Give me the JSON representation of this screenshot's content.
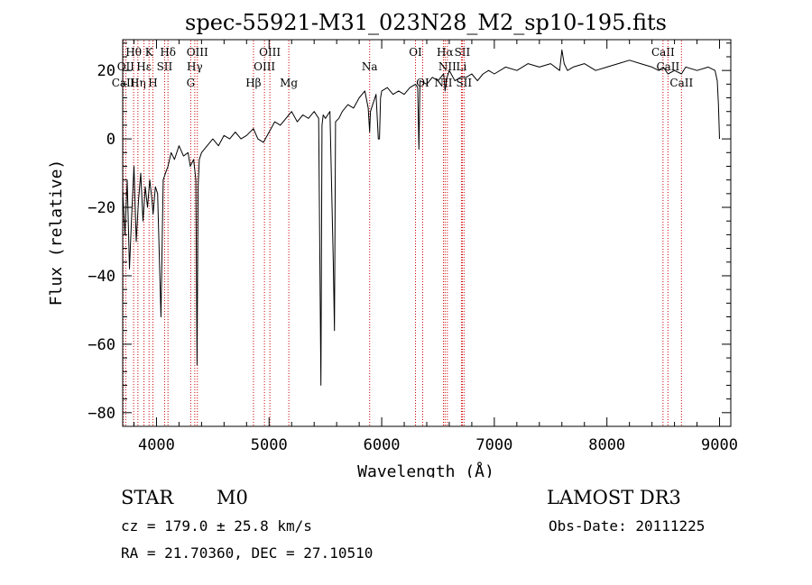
{
  "chart_data": {
    "type": "line",
    "title": "spec-55921-M31_023N28_M2_sp10-195.fits",
    "xlabel": "Wavelength (Å)",
    "ylabel": "Flux (relative)",
    "xlim": [
      3700,
      9100
    ],
    "ylim": [
      -84,
      29
    ],
    "xticks": [
      4000,
      5000,
      6000,
      7000,
      8000,
      9000
    ],
    "xtick_labels": [
      "4000",
      "5000",
      "6000",
      "7000",
      "8000",
      "9000"
    ],
    "yticks": [
      -80,
      -60,
      -40,
      -20,
      0,
      20
    ],
    "ytick_labels": [
      "−80",
      "−60",
      "−40",
      "−20",
      "0",
      "20"
    ],
    "series": [
      {
        "name": "flux",
        "x": [
          3700,
          3720,
          3740,
          3760,
          3780,
          3800,
          3820,
          3840,
          3860,
          3880,
          3900,
          3920,
          3940,
          3960,
          3970,
          3990,
          4010,
          4040,
          4060,
          4080,
          4102,
          4130,
          4160,
          4200,
          4240,
          4280,
          4300,
          4330,
          4350,
          4360,
          4370,
          4380,
          4400,
          4450,
          4500,
          4550,
          4600,
          4650,
          4700,
          4750,
          4800,
          4861,
          4900,
          4950,
          5000,
          5050,
          5100,
          5150,
          5200,
          5250,
          5300,
          5350,
          5400,
          5440,
          5460,
          5470,
          5480,
          5500,
          5540,
          5570,
          5580,
          5590,
          5620,
          5650,
          5700,
          5750,
          5800,
          5850,
          5880,
          5893,
          5900,
          5950,
          5970,
          5980,
          5990,
          6000,
          6050,
          6100,
          6150,
          6200,
          6250,
          6300,
          6320,
          6330,
          6340,
          6400,
          6450,
          6500,
          6550,
          6563,
          6580,
          6600,
          6650,
          6700,
          6750,
          6800,
          6850,
          6900,
          6950,
          7000,
          7100,
          7200,
          7300,
          7400,
          7500,
          7580,
          7600,
          7620,
          7650,
          7700,
          7800,
          7900,
          8000,
          8100,
          8200,
          8300,
          8400,
          8460,
          8500,
          8542,
          8600,
          8662,
          8700,
          8800,
          8900,
          8960,
          8980,
          8990,
          9000
        ],
        "y": [
          -15,
          -28,
          -12,
          -38,
          -22,
          -8,
          -30,
          -18,
          -10,
          -24,
          -14,
          -20,
          -12,
          -18,
          -22,
          -14,
          -16,
          -52,
          -12,
          -10,
          -8,
          -4,
          -6,
          -2,
          -5,
          -4,
          -8,
          -6,
          -12,
          -66,
          -14,
          -6,
          -4,
          -2,
          0,
          -2,
          1,
          0,
          2,
          0,
          1,
          3,
          0,
          -1,
          2,
          5,
          4,
          6,
          8,
          5,
          7,
          6,
          8,
          6,
          -72,
          4,
          7,
          6,
          8,
          -36,
          -56,
          5,
          6,
          8,
          10,
          9,
          12,
          14,
          9,
          2,
          8,
          13,
          0,
          0,
          12,
          14,
          15,
          13,
          14,
          13,
          15,
          16,
          15,
          -3,
          17,
          16,
          18,
          17,
          19,
          14,
          18,
          20,
          17,
          18,
          18,
          19,
          17,
          19,
          20,
          19,
          21,
          20,
          22,
          21,
          22,
          20,
          26,
          22,
          20,
          21,
          22,
          20,
          21,
          22,
          23,
          22,
          21,
          20,
          21,
          19,
          20,
          19,
          21,
          20,
          21,
          20,
          17,
          10,
          0
        ]
      }
    ],
    "line_markers": [
      {
        "label": "Hθ",
        "x": 3797,
        "row": 1
      },
      {
        "label": "OII",
        "x": 3727,
        "row": 2
      },
      {
        "label": "CaII",
        "x": 3705,
        "row": 3
      },
      {
        "label": "Hη",
        "x": 3835,
        "row": 3
      },
      {
        "label": "Hε",
        "x": 3889,
        "row": 2
      },
      {
        "label": "K",
        "x": 3934,
        "row": 1
      },
      {
        "label": "H",
        "x": 3968,
        "row": 3
      },
      {
        "label": "SII",
        "x": 4072,
        "row": 2
      },
      {
        "label": "Hδ",
        "x": 4102,
        "row": 1
      },
      {
        "label": "G",
        "x": 4304,
        "row": 3
      },
      {
        "label": "Hγ",
        "x": 4340,
        "row": 2
      },
      {
        "label": "OIII",
        "x": 4363,
        "row": 1
      },
      {
        "label": "Hβ",
        "x": 4861,
        "row": 3
      },
      {
        "label": "OIII",
        "x": 4959,
        "row": 2
      },
      {
        "label": "OIII",
        "x": 5007,
        "row": 1
      },
      {
        "label": "Mg",
        "x": 5175,
        "row": 3
      },
      {
        "label": "Na",
        "x": 5893,
        "row": 2
      },
      {
        "label": "OI",
        "x": 6300,
        "row": 1
      },
      {
        "label": "OI",
        "x": 6364,
        "row": 3
      },
      {
        "label": "NII",
        "x": 6548,
        "row": 3
      },
      {
        "label": "Hα",
        "x": 6563,
        "row": 1
      },
      {
        "label": "NII",
        "x": 6583,
        "row": 2
      },
      {
        "label": "Li",
        "x": 6708,
        "row": 2
      },
      {
        "label": "SII",
        "x": 6716,
        "row": 1
      },
      {
        "label": "SII",
        "x": 6731,
        "row": 3
      },
      {
        "label": "CaII",
        "x": 8498,
        "row": 1
      },
      {
        "label": "CaII",
        "x": 8542,
        "row": 2
      },
      {
        "label": "CaII",
        "x": 8662,
        "row": 3
      }
    ],
    "colors": {
      "spectrum": "#000000",
      "markers": "#cc0000",
      "text": "#000000"
    }
  },
  "footer": {
    "object_class": "STAR",
    "subclass": "M0",
    "survey": "LAMOST DR3",
    "redshift": "cz = 179.0 ± 25.8 km/s",
    "obs_date": "Obs-Date: 20111225",
    "coords": "RA =  21.70360, DEC =  27.10510"
  }
}
